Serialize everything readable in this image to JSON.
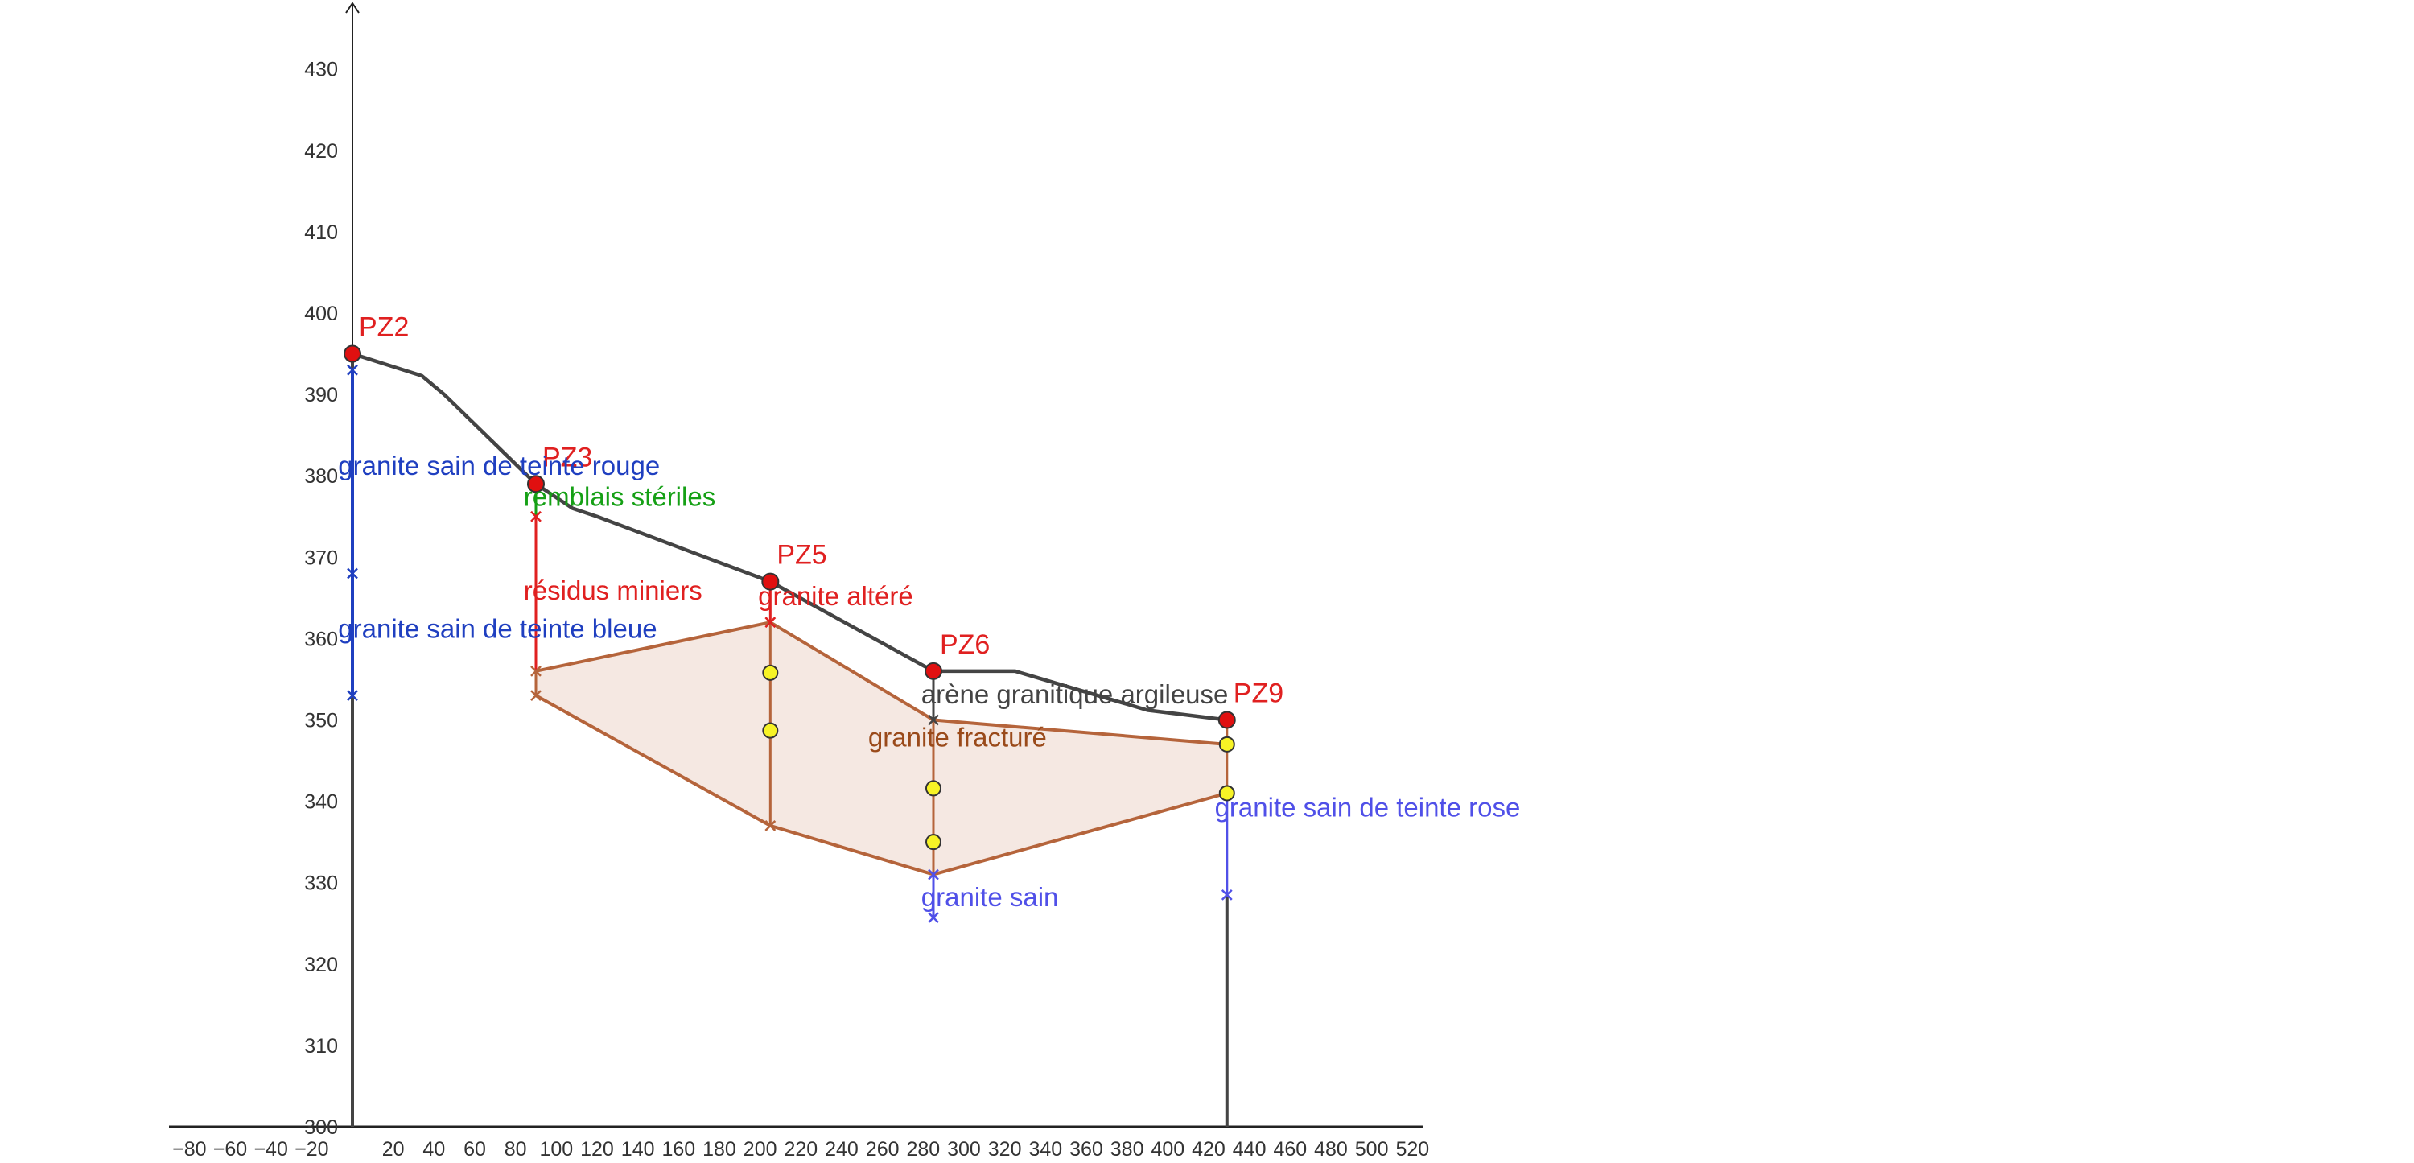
{
  "axes": {
    "x_ticks": [
      -80,
      -60,
      -40,
      -20,
      20,
      40,
      60,
      80,
      100,
      120,
      140,
      160,
      180,
      200,
      220,
      240,
      260,
      280,
      300,
      320,
      340,
      360,
      380,
      400,
      420,
      440,
      460,
      480,
      500,
      520
    ],
    "y_ticks": [
      300,
      310,
      320,
      330,
      340,
      350,
      360,
      370,
      380,
      390,
      400,
      410,
      420,
      430
    ],
    "xlim": [
      -90,
      525
    ],
    "ylim": [
      300,
      434
    ]
  },
  "colors": {
    "ground": "#444444",
    "axis": "#222222",
    "fractured": "#b5643b",
    "fractured_fill": "#f5e8e2",
    "red": "#e02020",
    "green": "#15a015",
    "blue_dark": "#1f3fc0",
    "blue_light": "#5050e8",
    "brown_text": "#9a4a1a",
    "point_red": "#e01010",
    "point_yellow": "#f7f326"
  },
  "ground_profile": [
    [
      0,
      395
    ],
    [
      34,
      392.3
    ],
    [
      45,
      390
    ],
    [
      90,
      379
    ],
    [
      108,
      376
    ],
    [
      120,
      375
    ],
    [
      205,
      367
    ],
    [
      285,
      356
    ],
    [
      325,
      356
    ],
    [
      390,
      351.2
    ],
    [
      429,
      350
    ]
  ],
  "fractured_zone": {
    "top": [
      [
        90,
        356
      ],
      [
        205,
        362
      ],
      [
        285,
        350
      ],
      [
        429,
        347
      ]
    ],
    "bottom": [
      [
        90,
        353
      ],
      [
        205,
        337
      ],
      [
        285,
        331
      ],
      [
        429,
        341
      ]
    ]
  },
  "piezometers": [
    {
      "name": "PZ2",
      "x": 0,
      "y": 395
    },
    {
      "name": "PZ3",
      "x": 90,
      "y": 379
    },
    {
      "name": "PZ5",
      "x": 205,
      "y": 367
    },
    {
      "name": "PZ6",
      "x": 285,
      "y": 356
    },
    {
      "name": "PZ9",
      "x": 429,
      "y": 350
    }
  ],
  "boreholes": [
    {
      "x": 0,
      "from": 300,
      "to": 395,
      "color": "ground",
      "width": 4
    },
    {
      "x": 0,
      "from": 353,
      "to": 393,
      "color": "blue_dark",
      "width": 4
    },
    {
      "x": 90,
      "from": 375,
      "to": 379,
      "color": "green",
      "width": 3
    },
    {
      "x": 90,
      "from": 356,
      "to": 375,
      "color": "red",
      "width": 3
    },
    {
      "x": 90,
      "from": 353,
      "to": 356,
      "color": "fractured",
      "width": 3
    },
    {
      "x": 205,
      "from": 362,
      "to": 367,
      "color": "red",
      "width": 3
    },
    {
      "x": 205,
      "from": 337,
      "to": 362,
      "color": "fractured",
      "width": 3
    },
    {
      "x": 285,
      "from": 350,
      "to": 356,
      "color": "ground",
      "width": 3
    },
    {
      "x": 285,
      "from": 331,
      "to": 350,
      "color": "fractured",
      "width": 3
    },
    {
      "x": 285,
      "from": 325.7,
      "to": 331,
      "color": "blue_light",
      "width": 3
    },
    {
      "x": 429,
      "from": 341,
      "to": 350,
      "color": "fractured",
      "width": 3
    },
    {
      "x": 429,
      "from": 328.5,
      "to": 341,
      "color": "blue_light",
      "width": 3
    },
    {
      "x": 429,
      "from": 300,
      "to": 328.5,
      "color": "ground",
      "width": 4
    }
  ],
  "markers": [
    {
      "x": 0,
      "y": 393,
      "color": "blue_dark"
    },
    {
      "x": 0,
      "y": 368,
      "color": "blue_dark"
    },
    {
      "x": 0,
      "y": 353,
      "color": "blue_dark"
    },
    {
      "x": 90,
      "y": 375,
      "color": "red"
    },
    {
      "x": 90,
      "y": 356,
      "color": "fractured"
    },
    {
      "x": 90,
      "y": 353,
      "color": "fractured"
    },
    {
      "x": 205,
      "y": 362,
      "color": "red"
    },
    {
      "x": 205,
      "y": 337,
      "color": "fractured"
    },
    {
      "x": 285,
      "y": 350,
      "color": "ground"
    },
    {
      "x": 285,
      "y": 331,
      "color": "blue_light"
    },
    {
      "x": 285,
      "y": 325.7,
      "color": "blue_light"
    },
    {
      "x": 429,
      "y": 328.5,
      "color": "blue_light"
    }
  ],
  "yellow_points": [
    [
      205,
      355.8
    ],
    [
      205,
      348.7
    ],
    [
      285,
      341.6
    ],
    [
      285,
      335
    ],
    [
      429,
      347
    ],
    [
      429,
      341
    ]
  ],
  "labels": [
    {
      "key": "granite_rouge",
      "text": "granite sain de teinte rouge",
      "x": -7,
      "y": 381.2,
      "color": "blue_dark"
    },
    {
      "key": "granite_bleue",
      "text": "granite sain de teinte bleue",
      "x": -7,
      "y": 361.2,
      "color": "blue_dark"
    },
    {
      "key": "remblais",
      "text": "remblais stériles",
      "x": 84,
      "y": 377.4,
      "color": "green"
    },
    {
      "key": "residus",
      "text": "résidus miniers",
      "x": 84,
      "y": 365.9,
      "color": "red"
    },
    {
      "key": "granite_altere",
      "text": "granite altéré",
      "x": 199,
      "y": 365.2,
      "color": "red"
    },
    {
      "key": "arene",
      "text": "arène granitique argileuse",
      "x": 279,
      "y": 353.1,
      "color": "ground"
    },
    {
      "key": "granite_fracture",
      "text": "granite fracturé",
      "x": 253,
      "y": 347.8,
      "color": "brown_text"
    },
    {
      "key": "granite_sain",
      "text": "granite sain",
      "x": 279,
      "y": 328.2,
      "color": "blue_light"
    },
    {
      "key": "granite_rose",
      "text": "granite sain de teinte rose",
      "x": 423,
      "y": 339.2,
      "color": "blue_light"
    }
  ]
}
